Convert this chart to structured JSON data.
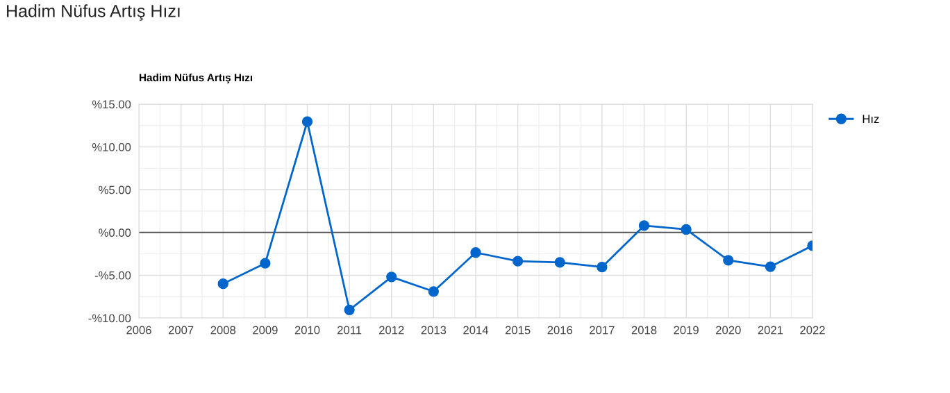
{
  "chart_data": {
    "type": "line",
    "title": "Hadim Nüfus Artış Hızı",
    "subtitle": "Hadim Nüfus Artış Hızı",
    "x": [
      2008,
      2009,
      2010,
      2011,
      2012,
      2013,
      2014,
      2015,
      2016,
      2017,
      2018,
      2019,
      2020,
      2021,
      2022
    ],
    "series": [
      {
        "name": "Hız",
        "color": "#0066cc",
        "values": [
          -6.0,
          -3.6,
          12.95,
          -9.05,
          -5.2,
          -6.9,
          -2.35,
          -3.35,
          -3.5,
          -4.05,
          0.8,
          0.35,
          -3.25,
          -4.0,
          -1.55
        ]
      }
    ],
    "xlim": [
      2006,
      2022
    ],
    "xticks": [
      2006,
      2007,
      2008,
      2009,
      2010,
      2011,
      2012,
      2013,
      2014,
      2015,
      2016,
      2017,
      2018,
      2019,
      2020,
      2021,
      2022
    ],
    "ylim": [
      -10,
      15
    ],
    "yticks": [
      {
        "value": -10,
        "label": "-%10.00"
      },
      {
        "value": -5,
        "label": "-%5.00"
      },
      {
        "value": 0,
        "label": "%0.00"
      },
      {
        "value": 5,
        "label": "%5.00"
      },
      {
        "value": 10,
        "label": "%10.00"
      },
      {
        "value": 15,
        "label": "%15.00"
      }
    ],
    "ref_lines": [
      {
        "axis": "y",
        "value": 0,
        "color": "#555555"
      }
    ],
    "grid": true,
    "legend": "top right",
    "marker": "circle",
    "line_style": "solid"
  }
}
